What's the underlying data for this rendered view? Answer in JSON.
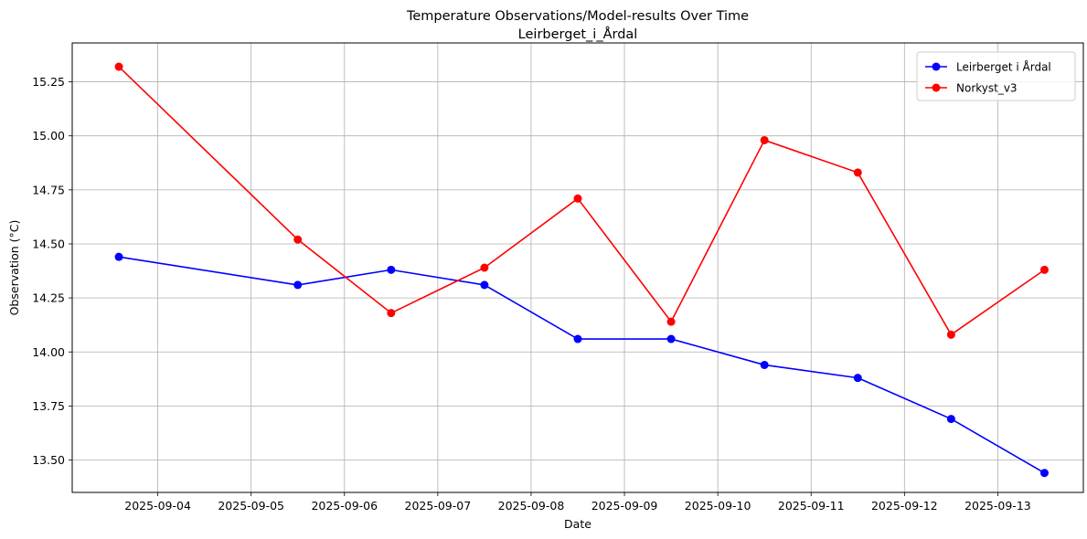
{
  "chart_data": {
    "type": "line",
    "title": "Temperature Observations/Model-results Over Time",
    "subtitle": "Leirberget_i_Årdal",
    "xlabel": "Date",
    "ylabel": "Observation (°C)",
    "grid": true,
    "legend_position": "top-right",
    "xlim": [
      "2025-09-03T02:00",
      "2025-09-13T22:00"
    ],
    "ylim": [
      13.35,
      15.43
    ],
    "x_ticks": [
      "2025-09-04",
      "2025-09-05",
      "2025-09-06",
      "2025-09-07",
      "2025-09-08",
      "2025-09-09",
      "2025-09-10",
      "2025-09-11",
      "2025-09-12",
      "2025-09-13"
    ],
    "y_ticks": [
      "13.50",
      "13.75",
      "14.00",
      "14.25",
      "14.50",
      "14.75",
      "15.00",
      "15.25"
    ],
    "series": [
      {
        "name": "Leirberget i Årdal",
        "color": "#0000ff",
        "marker": "circle",
        "x": [
          "2025-09-03T14:00",
          "2025-09-05T12:00",
          "2025-09-06T12:00",
          "2025-09-07T12:00",
          "2025-09-08T12:00",
          "2025-09-09T12:00",
          "2025-09-10T12:00",
          "2025-09-11T12:00",
          "2025-09-12T12:00",
          "2025-09-13T12:00"
        ],
        "values": [
          14.44,
          14.31,
          14.38,
          14.31,
          14.06,
          14.06,
          13.94,
          13.88,
          13.69,
          13.44
        ]
      },
      {
        "name": "Norkyst_v3",
        "color": "#ff0000",
        "marker": "circle",
        "x": [
          "2025-09-03T14:00",
          "2025-09-05T12:00",
          "2025-09-06T12:00",
          "2025-09-07T12:00",
          "2025-09-08T12:00",
          "2025-09-09T12:00",
          "2025-09-10T12:00",
          "2025-09-11T12:00",
          "2025-09-12T12:00",
          "2025-09-13T12:00"
        ],
        "values": [
          15.32,
          14.52,
          14.18,
          14.39,
          14.71,
          14.14,
          14.98,
          14.83,
          14.08,
          14.38
        ]
      }
    ]
  }
}
